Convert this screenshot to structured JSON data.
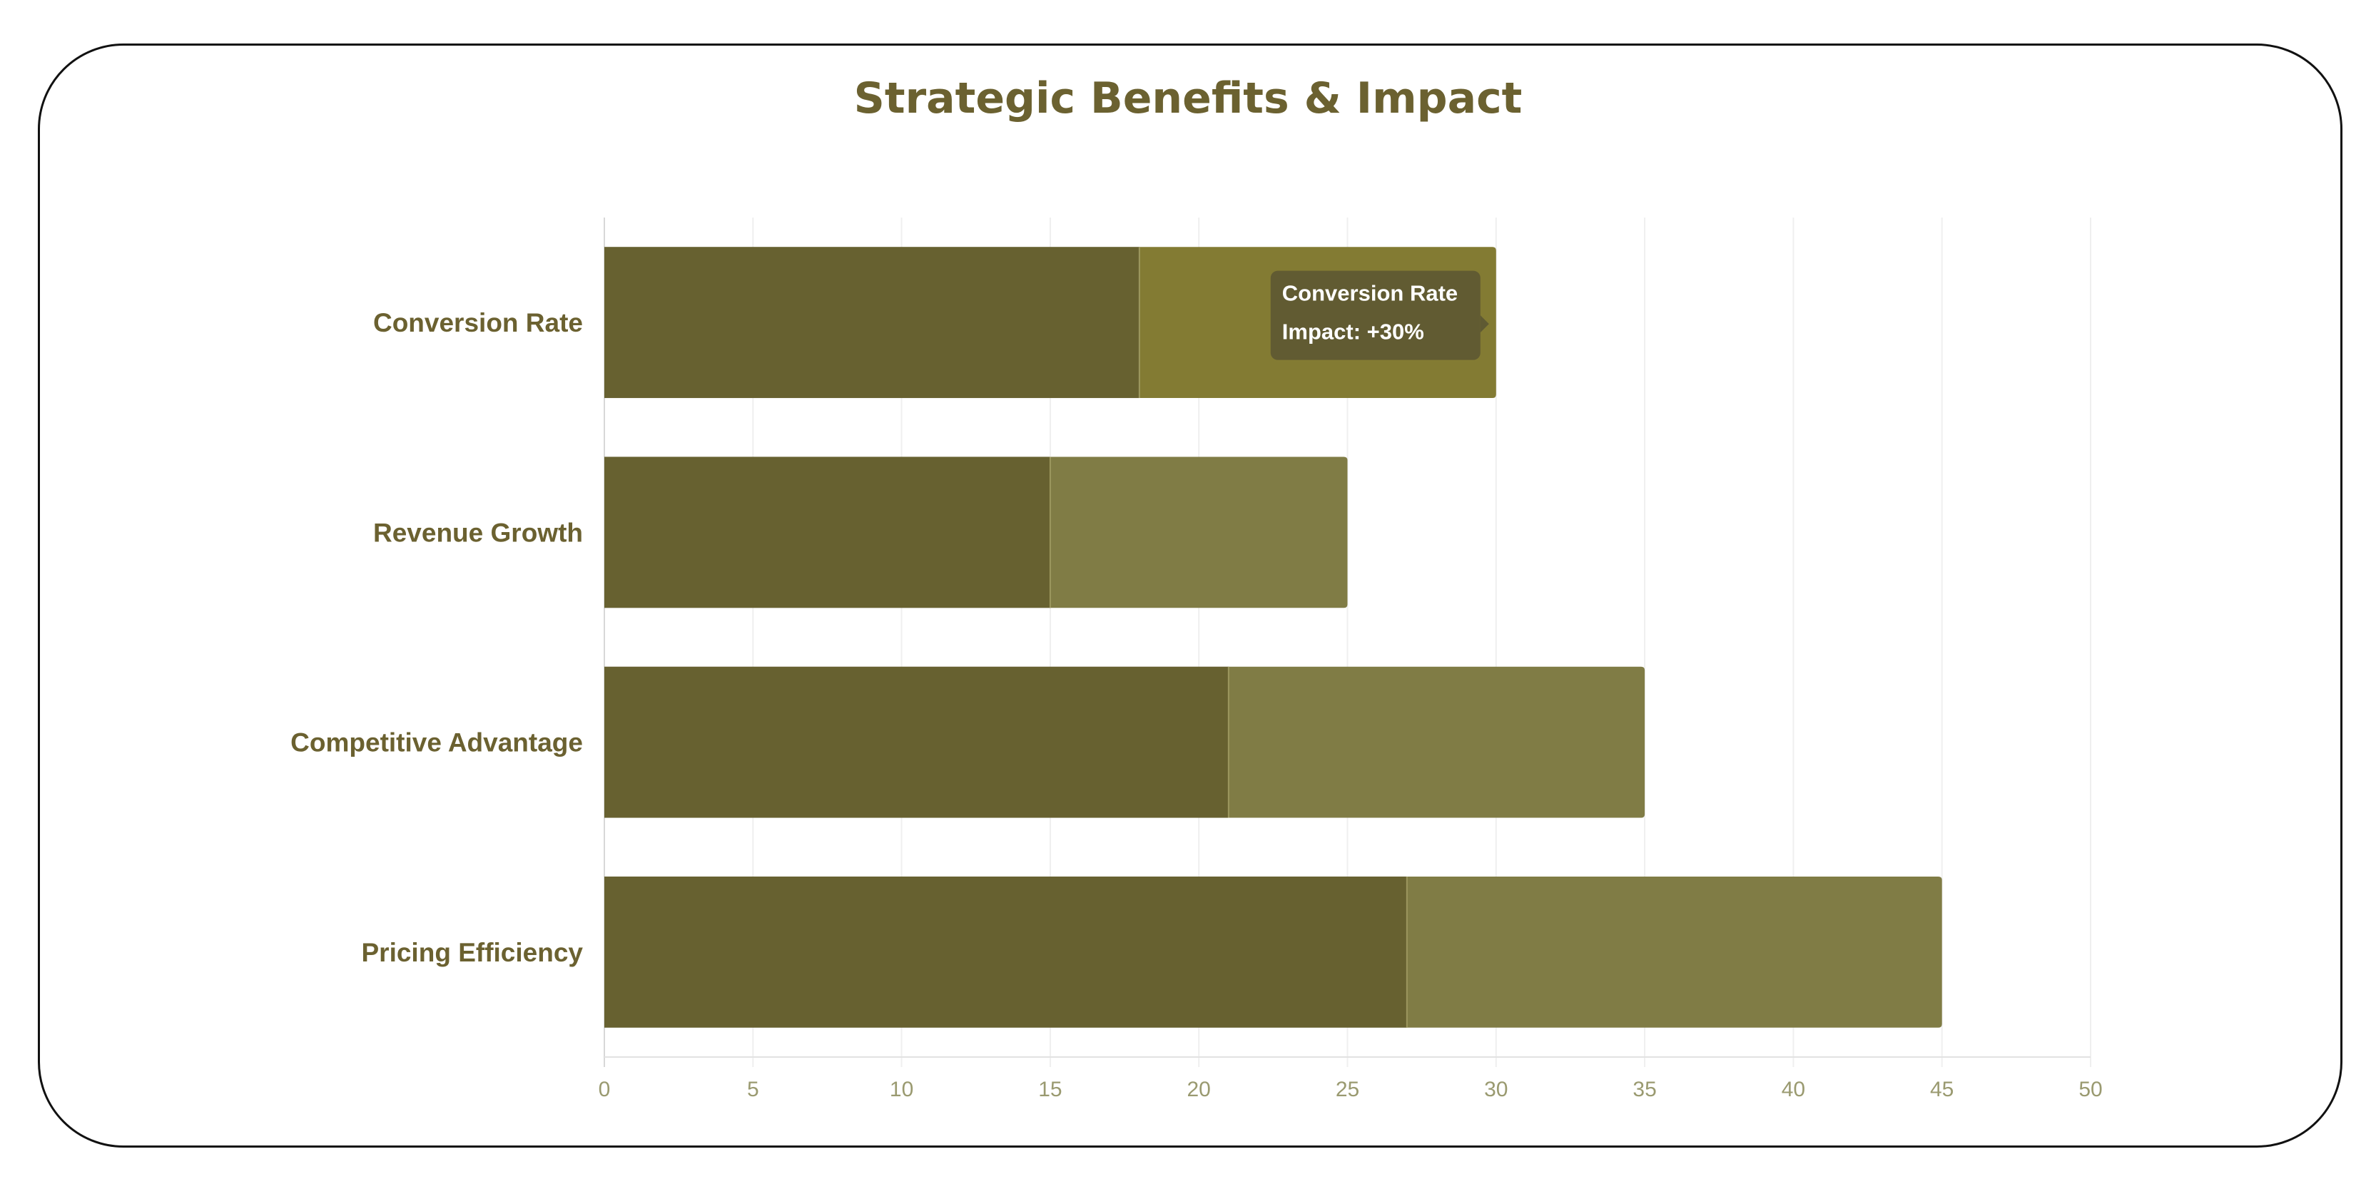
{
  "chart_data": {
    "type": "bar",
    "orientation": "horizontal",
    "stacked": true,
    "title": "Strategic Benefits & Impact",
    "categories": [
      "Conversion Rate",
      "Revenue Growth",
      "Competitive Advantage",
      "Pricing Efficiency"
    ],
    "series": [
      {
        "values": [
          18,
          15,
          21,
          27
        ],
        "color": "#676130"
      },
      {
        "values": [
          12,
          10,
          14,
          18
        ],
        "color": "#807c45"
      }
    ],
    "highlight_color": "#837b33",
    "xlim": [
      0,
      50
    ],
    "xticks": [
      0,
      5,
      10,
      15,
      20,
      25,
      30,
      35,
      40,
      45,
      50
    ],
    "grid": "vertical",
    "tooltip": {
      "category": "Conversion Rate",
      "title": "Conversion Rate",
      "body": "Impact: +30%"
    }
  }
}
